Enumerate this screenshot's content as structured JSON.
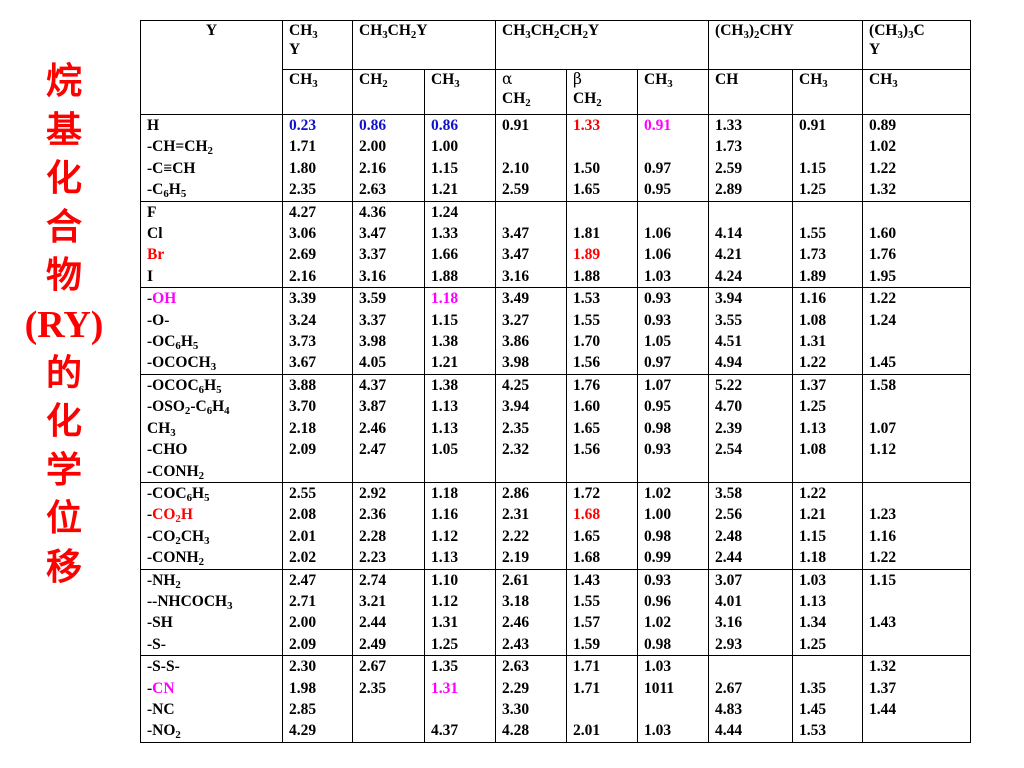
{
  "side_title": [
    "烷",
    "基",
    "化",
    "合",
    "物",
    "(RY)",
    "的",
    "化",
    "学",
    "位",
    "移"
  ],
  "header": {
    "y": "Y",
    "cols": [
      {
        "html": "CH<sub>3</sub><br>Y"
      },
      {
        "html": "CH<sub>3</sub>CH<sub>2</sub>Y"
      },
      {
        "html": "CH<sub>3</sub>CH<sub>2</sub>CH<sub>2</sub>Y"
      },
      {
        "html": "(CH<sub>3</sub>)<sub>2</sub>CHY"
      },
      {
        "html": "(CH<sub>3</sub>)<sub>3</sub>C<br>Y"
      }
    ],
    "sub": [
      "CH<sub>3</sub>",
      "CH<sub>2</sub>",
      "CH<sub>3</sub>",
      "<span class='grk'>α</span><br>CH<sub>2</sub>",
      "<span class='grk'>β</span><br>CH<sub>2</sub>",
      "CH<sub>3</sub>",
      "CH",
      "CH<sub>3</sub>",
      "CH<sub>3</sub>"
    ]
  },
  "groups": [
    [
      {
        "y": "H",
        "v": [
          "0.23",
          "0.86",
          "0.86",
          "0.91",
          "1.33",
          "0.91",
          "1.33",
          "0.91",
          "0.89"
        ],
        "c": [
          "blue",
          "blue",
          "blue",
          "",
          "red",
          "magenta",
          "",
          "",
          ""
        ]
      },
      {
        "y": "-CH=CH<sub>2</sub>",
        "v": [
          "1.71",
          "2.00",
          "1.00",
          "",
          "",
          "",
          "1.73",
          "",
          "1.02"
        ]
      },
      {
        "y": "-C≡CH",
        "v": [
          "1.80",
          "2.16",
          "1.15",
          "2.10",
          "1.50",
          "0.97",
          "2.59",
          "1.15",
          "1.22"
        ]
      },
      {
        "y": "-C<sub>6</sub>H<sub>5</sub>",
        "v": [
          "2.35",
          "2.63",
          "1.21",
          "2.59",
          "1.65",
          "0.95",
          "2.89",
          "1.25",
          "1.32"
        ]
      }
    ],
    [
      {
        "y": "F",
        "v": [
          "4.27",
          "4.36",
          "1.24",
          "",
          "",
          "",
          "",
          "",
          ""
        ]
      },
      {
        "y": "Cl",
        "v": [
          "3.06",
          "3.47",
          "1.33",
          "3.47",
          "1.81",
          "1.06",
          "4.14",
          "1.55",
          "1.60"
        ]
      },
      {
        "y": "<span class='red'>Br</span>",
        "v": [
          "2.69",
          "3.37",
          "1.66",
          "3.47",
          "1.89",
          "1.06",
          "4.21",
          "1.73",
          "1.76"
        ],
        "c": [
          "",
          "",
          "",
          "",
          "red",
          "",
          "",
          "",
          ""
        ]
      },
      {
        "y": "I",
        "v": [
          "2.16",
          "3.16",
          "1.88",
          "3.16",
          "1.88",
          "1.03",
          "4.24",
          "1.89",
          "1.95"
        ]
      }
    ],
    [
      {
        "y": "-<span class='magenta'>OH</span>",
        "v": [
          "3.39",
          "3.59",
          "1.18",
          "3.49",
          "1.53",
          "0.93",
          "3.94",
          "1.16",
          "1.22"
        ],
        "c": [
          "",
          "",
          "magenta",
          "",
          "",
          "",
          "",
          "",
          ""
        ]
      },
      {
        "y": "-O-",
        "v": [
          "3.24",
          "3.37",
          "1.15",
          "3.27",
          "1.55",
          "0.93",
          "3.55",
          "1.08",
          "1.24"
        ]
      },
      {
        "y": "-OC<sub>6</sub>H<sub>5</sub>",
        "v": [
          "3.73",
          "3.98",
          "1.38",
          "3.86",
          "1.70",
          "1.05",
          "4.51",
          "1.31",
          ""
        ]
      },
      {
        "y": "-OCOCH<sub>3</sub>",
        "v": [
          "3.67",
          "4.05",
          "1.21",
          "3.98",
          "1.56",
          "0.97",
          "4.94",
          "1.22",
          "1.45"
        ]
      }
    ],
    [
      {
        "y": "-OCOC<sub>6</sub>H<sub>5</sub>",
        "v": [
          "3.88",
          "4.37",
          "1.38",
          "4.25",
          "1.76",
          "1.07",
          "5.22",
          "1.37",
          "1.58"
        ]
      },
      {
        "y": "-OSO<sub>2</sub>-C<sub>6</sub>H<sub>4</sub>",
        "v": [
          "3.70",
          "3.87",
          "1.13",
          "3.94",
          "1.60",
          "0.95",
          "4.70",
          "1.25",
          ""
        ]
      },
      {
        "y": "CH<sub>3</sub>",
        "v": [
          "2.18",
          "2.46",
          "1.13",
          "2.35",
          "1.65",
          "0.98",
          "2.39",
          "1.13",
          "1.07"
        ]
      },
      {
        "y": "-CHO",
        "v": [
          "2.09",
          "2.47",
          "1.05",
          "2.32",
          "1.56",
          "0.93",
          "2.54",
          "1.08",
          "1.12"
        ]
      },
      {
        "y": "-CONH<sub>2</sub>",
        "v": [
          "",
          "",
          "",
          "",
          "",
          "",
          "",
          "",
          ""
        ]
      }
    ],
    [
      {
        "y": "-COC<sub>6</sub>H<sub>5</sub>",
        "v": [
          "2.55",
          "2.92",
          "1.18",
          "2.86",
          "1.72",
          "1.02",
          "3.58",
          "1.22",
          ""
        ]
      },
      {
        "y": "-<span class='red'>CO<sub>2</sub>H</span>",
        "v": [
          "2.08",
          "2.36",
          "1.16",
          "2.31",
          "1.68",
          "1.00",
          "2.56",
          "1.21",
          "1.23"
        ],
        "c": [
          "",
          "",
          "",
          "",
          "red",
          "",
          "",
          "",
          ""
        ]
      },
      {
        "y": "-CO<sub>2</sub>CH<sub>3</sub>",
        "v": [
          "2.01",
          "2.28",
          "1.12",
          "2.22",
          "1.65",
          "0.98",
          "2.48",
          "1.15",
          "1.16"
        ]
      },
      {
        "y": "-CONH<sub>2</sub>",
        "v": [
          "2.02",
          "2.23",
          "1.13",
          "2.19",
          "1.68",
          "0.99",
          "2.44",
          "1.18",
          "1.22"
        ]
      }
    ],
    [
      {
        "y": "-NH<sub>2</sub>",
        "v": [
          "2.47",
          "2.74",
          "1.10",
          "2.61",
          "1.43",
          "0.93",
          "3.07",
          "1.03",
          "1.15"
        ]
      },
      {
        "y": "--NHCOCH<sub>3</sub>",
        "v": [
          "2.71",
          "3.21",
          "1.12",
          "3.18",
          "1.55",
          "0.96",
          "4.01",
          "1.13",
          ""
        ]
      },
      {
        "y": "-SH",
        "v": [
          "2.00",
          "2.44",
          "1.31",
          "2.46",
          "1.57",
          "1.02",
          "3.16",
          "1.34",
          "1.43"
        ]
      },
      {
        "y": "-S-",
        "v": [
          "2.09",
          "2.49",
          "1.25",
          "2.43",
          "1.59",
          "0.98",
          "2.93",
          "1.25",
          ""
        ]
      }
    ],
    [
      {
        "y": "-S-S-",
        "v": [
          "2.30",
          "2.67",
          "1.35",
          "2.63",
          "1.71",
          "1.03",
          "",
          "",
          "1.32"
        ]
      },
      {
        "y": "-<span class='magenta'>CN</span>",
        "v": [
          "1.98",
          "2.35",
          "1.31",
          "2.29",
          "1.71",
          "1011",
          "2.67",
          "1.35",
          "1.37"
        ],
        "c": [
          "",
          "",
          "magenta",
          "",
          "",
          "",
          "",
          "",
          ""
        ]
      },
      {
        "y": "-NC",
        "v": [
          "2.85",
          "",
          "",
          "3.30",
          "",
          "",
          "4.83",
          "1.45",
          "1.44"
        ]
      },
      {
        "y": "-NO<sub>2</sub>",
        "v": [
          "4.29",
          "",
          "4.37",
          "4.28",
          "2.01",
          "1.03",
          "4.44",
          "1.53",
          ""
        ]
      }
    ]
  ]
}
